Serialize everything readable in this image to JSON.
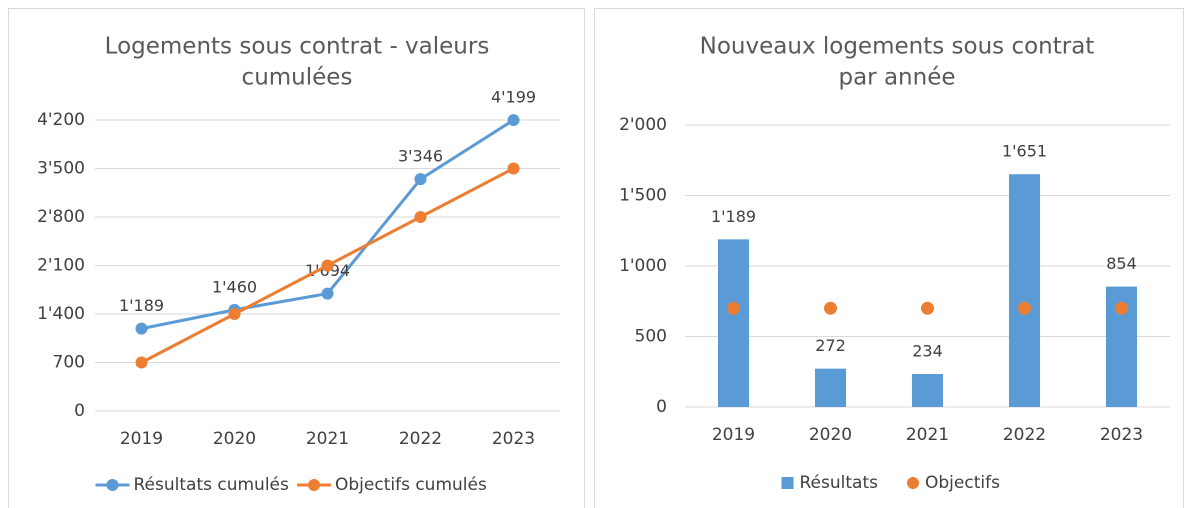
{
  "chart_data": [
    {
      "type": "line",
      "title": [
        "Logements sous contrat - valeurs",
        "cumulées"
      ],
      "categories": [
        "2019",
        "2020",
        "2021",
        "2022",
        "2023"
      ],
      "ylim": [
        0,
        4200
      ],
      "yticks": [
        0,
        700,
        {
          "value": 1400,
          "label": "1'400"
        },
        {
          "value": 2100,
          "label": "2'100"
        },
        {
          "value": 2800,
          "label": "2'800"
        },
        {
          "value": 3500,
          "label": "3'500"
        },
        {
          "value": 4200,
          "label": "4'200"
        }
      ],
      "grid": true,
      "legend": "bottom",
      "series": [
        {
          "name": "Résultats cumulés",
          "color": "#5b9bd5",
          "values": [
            1189,
            1460,
            1694,
            3346,
            4199
          ],
          "value_labels": [
            "1'189",
            "1'460",
            "1'694",
            "3'346",
            "4'199"
          ]
        },
        {
          "name": "Objectifs cumulés",
          "color": "#ed7d31",
          "values": [
            700,
            1400,
            2100,
            2800,
            3500
          ]
        }
      ]
    },
    {
      "type": "bar",
      "title": [
        "Nouveaux logements sous contrat",
        "par année"
      ],
      "categories": [
        "2019",
        "2020",
        "2021",
        "2022",
        "2023"
      ],
      "ylim": [
        0,
        2000
      ],
      "yticks": [
        0,
        500,
        {
          "value": 1000,
          "label": "1'000"
        },
        {
          "value": 1500,
          "label": "1'500"
        },
        {
          "value": 2000,
          "label": "2'000"
        }
      ],
      "grid": true,
      "legend": "bottom",
      "series": [
        {
          "name": "Résultats",
          "type": "bar",
          "color": "#5b9bd5",
          "values": [
            1189,
            272,
            234,
            1651,
            854
          ],
          "value_labels": [
            "1'189",
            "272",
            "234",
            "1'651",
            "854"
          ]
        },
        {
          "name": "Objectifs",
          "type": "scatter",
          "color": "#ed7d31",
          "values": [
            700,
            700,
            700,
            700,
            700
          ]
        }
      ]
    }
  ]
}
